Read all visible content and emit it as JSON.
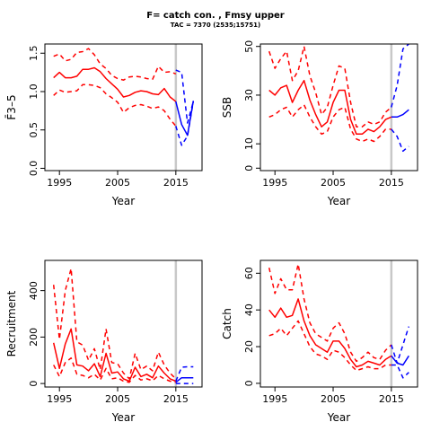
{
  "figure": {
    "title": "F= catch con. , Fmsy upper",
    "subtitle": "TAC = 7370 (2535;15751)",
    "colors": {
      "historic": "#ff0000",
      "projection": "#0000ff",
      "vline": "#c8c8c8"
    },
    "vline_year": 2015
  },
  "chart_data": [
    {
      "id": "fbar",
      "type": "line",
      "xlabel": "Year",
      "ylabel": "F̄3–5",
      "xlim": [
        1992.5,
        2019.5
      ],
      "ylim": [
        -0.03,
        1.62
      ],
      "xticks": [
        1995,
        2005,
        2015
      ],
      "yticks": [
        0.0,
        0.5,
        1.0,
        1.5
      ],
      "ytick_labels": [
        "0.0",
        "0.5",
        "1.0",
        "1.5"
      ],
      "grid": false,
      "series": [
        {
          "role": "historic-median",
          "x": [
            1994,
            1995,
            1996,
            1997,
            1998,
            1999,
            2000,
            2001,
            2002,
            2003,
            2004,
            2005,
            2006,
            2007,
            2008,
            2009,
            2010,
            2011,
            2012,
            2013,
            2014,
            2015
          ],
          "y": [
            1.18,
            1.25,
            1.18,
            1.18,
            1.2,
            1.29,
            1.29,
            1.31,
            1.26,
            1.17,
            1.1,
            1.03,
            0.93,
            0.95,
            0.99,
            1.01,
            1.0,
            0.97,
            0.96,
            1.04,
            0.93,
            0.87
          ]
        },
        {
          "role": "historic-upper",
          "x": [
            1994,
            1995,
            1996,
            1997,
            1998,
            1999,
            2000,
            2001,
            2002,
            2003,
            2004,
            2005,
            2006,
            2007,
            2008,
            2009,
            2010,
            2011,
            2012,
            2013,
            2014,
            2015
          ],
          "y": [
            1.46,
            1.49,
            1.4,
            1.42,
            1.51,
            1.52,
            1.56,
            1.48,
            1.36,
            1.3,
            1.21,
            1.17,
            1.15,
            1.19,
            1.2,
            1.19,
            1.17,
            1.16,
            1.33,
            1.25,
            1.26,
            1.23
          ]
        },
        {
          "role": "historic-lower",
          "x": [
            1994,
            1995,
            1996,
            1997,
            1998,
            1999,
            2000,
            2001,
            2002,
            2003,
            2004,
            2005,
            2006,
            2007,
            2008,
            2009,
            2010,
            2011,
            2012,
            2013,
            2014,
            2015
          ],
          "y": [
            0.95,
            1.02,
            0.99,
            1.0,
            1.01,
            1.09,
            1.09,
            1.08,
            1.05,
            0.97,
            0.92,
            0.86,
            0.73,
            0.79,
            0.82,
            0.83,
            0.81,
            0.78,
            0.8,
            0.75,
            0.64,
            0.55
          ]
        },
        {
          "role": "projection-median",
          "x": [
            2015,
            2016,
            2017,
            2018
          ],
          "y": [
            0.87,
            0.57,
            0.43,
            0.88
          ]
        },
        {
          "role": "projection-upper",
          "x": [
            2015,
            2016,
            2017,
            2018
          ],
          "y": [
            1.28,
            1.25,
            0.59,
            0.87
          ]
        },
        {
          "role": "projection-lower",
          "x": [
            2015,
            2016,
            2017,
            2018
          ],
          "y": [
            0.55,
            0.3,
            0.42,
            0.87
          ]
        }
      ]
    },
    {
      "id": "ssb",
      "type": "line",
      "xlabel": "Year",
      "ylabel": "SSB",
      "xlim": [
        1992.5,
        2019.5
      ],
      "ylim": [
        -1,
        51
      ],
      "xticks": [
        1995,
        2005,
        2015
      ],
      "yticks": [
        0,
        10,
        30,
        50
      ],
      "ytick_labels": [
        "0",
        "10",
        "30",
        "50"
      ],
      "grid": false,
      "series": [
        {
          "role": "historic-median",
          "x": [
            1994,
            1995,
            1996,
            1997,
            1998,
            1999,
            2000,
            2001,
            2002,
            2003,
            2004,
            2005,
            2006,
            2007,
            2008,
            2009,
            2010,
            2011,
            2012,
            2013,
            2014,
            2015
          ],
          "y": [
            32,
            30,
            33,
            34,
            27,
            32,
            36,
            28,
            22,
            17,
            19,
            27,
            32,
            32,
            20,
            14,
            14,
            16,
            15,
            17,
            20,
            21
          ]
        },
        {
          "role": "historic-upper",
          "x": [
            1994,
            1995,
            1996,
            1997,
            1998,
            1999,
            2000,
            2001,
            2002,
            2003,
            2004,
            2005,
            2006,
            2007,
            2008,
            2009,
            2010,
            2011,
            2012,
            2013,
            2014,
            2015
          ],
          "y": [
            48,
            41,
            45,
            48,
            36,
            40,
            50,
            38,
            31,
            22,
            25,
            34,
            42,
            41,
            27,
            17,
            17,
            19,
            18,
            19,
            23,
            25
          ]
        },
        {
          "role": "historic-lower",
          "x": [
            1994,
            1995,
            1996,
            1997,
            1998,
            1999,
            2000,
            2001,
            2002,
            2003,
            2004,
            2005,
            2006,
            2007,
            2008,
            2009,
            2010,
            2011,
            2012,
            2013,
            2014,
            2015
          ],
          "y": [
            21,
            22,
            24,
            25,
            21,
            24,
            26,
            21,
            17,
            14,
            15,
            21,
            24,
            25,
            16,
            12,
            11,
            12,
            11,
            13,
            16,
            16
          ]
        },
        {
          "role": "projection-median",
          "x": [
            2015,
            2016,
            2017,
            2018
          ],
          "y": [
            21,
            21,
            22,
            24
          ]
        },
        {
          "role": "projection-upper",
          "x": [
            2015,
            2016,
            2017,
            2018
          ],
          "y": [
            25,
            34,
            49,
            51
          ]
        },
        {
          "role": "projection-lower",
          "x": [
            2015,
            2016,
            2017,
            2018
          ],
          "y": [
            16,
            13,
            7,
            9
          ]
        }
      ]
    },
    {
      "id": "recruitment",
      "type": "line",
      "xlabel": "Year",
      "ylabel": "Recruitment",
      "xlim": [
        1992.5,
        2019.5
      ],
      "ylim": [
        -15,
        530
      ],
      "xticks": [
        1995,
        2005,
        2015
      ],
      "yticks": [
        0,
        200,
        400
      ],
      "ytick_labels": [
        "0",
        "200",
        "400"
      ],
      "grid": false,
      "series": [
        {
          "role": "historic-median",
          "x": [
            1994,
            1995,
            1996,
            1997,
            1998,
            1999,
            2000,
            2001,
            2002,
            2003,
            2004,
            2005,
            2006,
            2007,
            2008,
            2009,
            2010,
            2011,
            2012,
            2013,
            2014,
            2015
          ],
          "y": [
            175,
            65,
            170,
            235,
            80,
            75,
            55,
            85,
            30,
            130,
            45,
            50,
            20,
            10,
            70,
            30,
            40,
            25,
            75,
            45,
            20,
            10
          ]
        },
        {
          "role": "historic-upper",
          "x": [
            1994,
            1995,
            1996,
            1997,
            1998,
            1999,
            2000,
            2001,
            2002,
            2003,
            2004,
            2005,
            2006,
            2007,
            2008,
            2009,
            2010,
            2011,
            2012,
            2013,
            2014,
            2015
          ],
          "y": [
            425,
            190,
            400,
            495,
            180,
            165,
            100,
            150,
            60,
            235,
            90,
            85,
            45,
            20,
            130,
            60,
            75,
            55,
            135,
            80,
            45,
            20
          ]
        },
        {
          "role": "historic-lower",
          "x": [
            1994,
            1995,
            1996,
            1997,
            1998,
            1999,
            2000,
            2001,
            2002,
            2003,
            2004,
            2005,
            2006,
            2007,
            2008,
            2009,
            2010,
            2011,
            2012,
            2013,
            2014,
            2015
          ],
          "y": [
            80,
            30,
            90,
            110,
            40,
            35,
            25,
            40,
            15,
            65,
            20,
            25,
            10,
            5,
            35,
            15,
            20,
            12,
            35,
            20,
            10,
            5
          ]
        },
        {
          "role": "projection-median",
          "x": [
            2015,
            2016,
            2017,
            2018
          ],
          "y": [
            5,
            25,
            25,
            25
          ]
        },
        {
          "role": "projection-upper",
          "x": [
            2015,
            2016,
            2017,
            2018
          ],
          "y": [
            10,
            70,
            72,
            72
          ]
        },
        {
          "role": "projection-lower",
          "x": [
            2015,
            2016,
            2017,
            2018
          ],
          "y": [
            0,
            0,
            0,
            0
          ]
        }
      ]
    },
    {
      "id": "catch",
      "type": "line",
      "xlabel": "Year",
      "ylabel": "Catch",
      "xlim": [
        1992.5,
        2019.5
      ],
      "ylim": [
        -2,
        67
      ],
      "xticks": [
        1995,
        2005,
        2015
      ],
      "yticks": [
        0,
        20,
        40,
        60
      ],
      "ytick_labels": [
        "0",
        "20",
        "40",
        "60"
      ],
      "grid": false,
      "series": [
        {
          "role": "historic-median",
          "x": [
            1994,
            1995,
            1996,
            1997,
            1998,
            1999,
            2000,
            2001,
            2002,
            2003,
            2004,
            2005,
            2006,
            2007,
            2008,
            2009,
            2010,
            2011,
            2012,
            2013,
            2014,
            2015
          ],
          "y": [
            40,
            36,
            41,
            36,
            37,
            46,
            34,
            26,
            21,
            19,
            17,
            23,
            23,
            19,
            13,
            9,
            10,
            12,
            11,
            10,
            13,
            15
          ]
        },
        {
          "role": "historic-upper",
          "x": [
            1994,
            1995,
            1996,
            1997,
            1998,
            1999,
            2000,
            2001,
            2002,
            2003,
            2004,
            2005,
            2006,
            2007,
            2008,
            2009,
            2010,
            2011,
            2012,
            2013,
            2014,
            2015
          ],
          "y": [
            63,
            49,
            57,
            51,
            51,
            65,
            46,
            33,
            27,
            25,
            23,
            30,
            33,
            27,
            17,
            12,
            14,
            17,
            14,
            13,
            18,
            21
          ]
        },
        {
          "role": "historic-lower",
          "x": [
            1994,
            1995,
            1996,
            1997,
            1998,
            1999,
            2000,
            2001,
            2002,
            2003,
            2004,
            2005,
            2006,
            2007,
            2008,
            2009,
            2010,
            2011,
            2012,
            2013,
            2014,
            2015
          ],
          "y": [
            26,
            27,
            30,
            26,
            30,
            34,
            27,
            20,
            16,
            15,
            13,
            18,
            17,
            14,
            10,
            7,
            8,
            9,
            8,
            8,
            10,
            10
          ]
        },
        {
          "role": "projection-median",
          "x": [
            2015,
            2016,
            2017,
            2018
          ],
          "y": [
            15,
            11,
            10,
            15
          ]
        },
        {
          "role": "projection-upper",
          "x": [
            2015,
            2016,
            2017,
            2018
          ],
          "y": [
            21,
            11,
            21,
            31
          ]
        },
        {
          "role": "projection-lower",
          "x": [
            2015,
            2016,
            2017,
            2018
          ],
          "y": [
            10,
            10,
            3,
            6
          ]
        }
      ]
    }
  ]
}
